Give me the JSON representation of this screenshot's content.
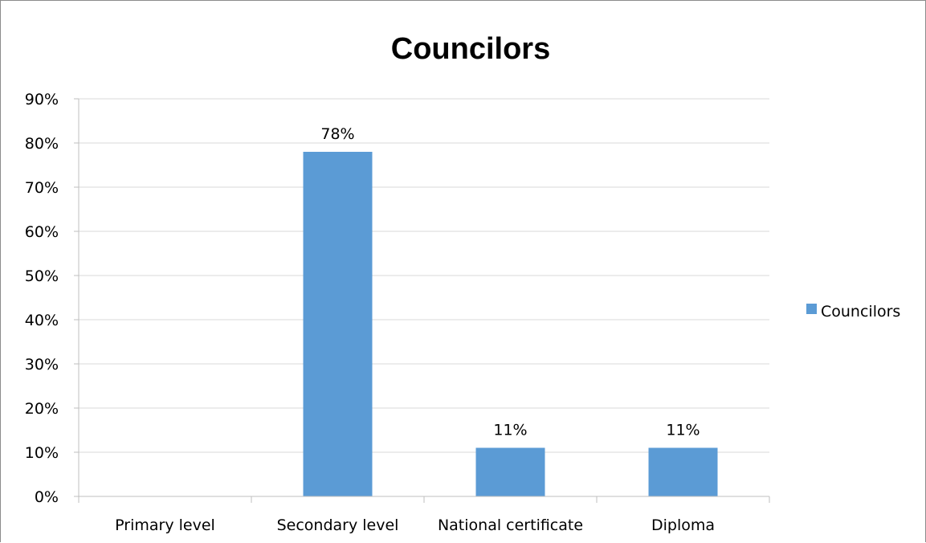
{
  "chart_data": {
    "type": "bar",
    "title": "Councilors",
    "categories": [
      "Primary level",
      "Secondary level",
      "National certificate",
      "Diploma"
    ],
    "series": [
      {
        "name": "Councilors",
        "values": [
          0.0,
          0.78,
          0.11,
          0.11
        ]
      }
    ],
    "data_labels": [
      "",
      "78%",
      "11%",
      "11%"
    ],
    "y_ticks": [
      "0%",
      "10%",
      "20%",
      "30%",
      "40%",
      "50%",
      "60%",
      "70%",
      "80%",
      "90%"
    ],
    "ylim": [
      0,
      0.9
    ],
    "grid": true,
    "legend": "right",
    "bar_color": "#5b9bd5"
  }
}
